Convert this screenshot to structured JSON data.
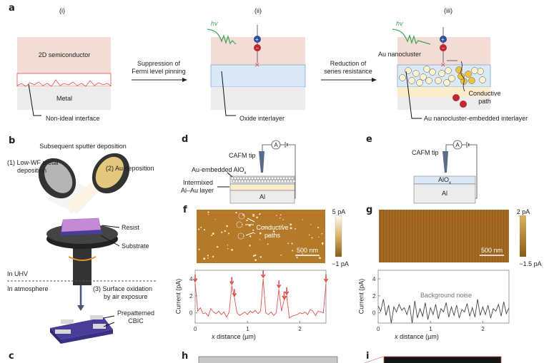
{
  "panel_labels": {
    "a": "a",
    "b": "b",
    "c": "c",
    "d": "d",
    "e": "e",
    "f": "f",
    "g": "g",
    "h": "h",
    "i": "i"
  },
  "panel_a": {
    "sub_i": "(i)",
    "sub_ii": "(ii)",
    "sub_iii": "(iii)",
    "semiconductor": "2D semiconductor",
    "metal": "Metal",
    "non_ideal": "Non-ideal interface",
    "arrow1_line1": "Suppression of",
    "arrow1_line2": "Fermi level pinning",
    "hv": "hv",
    "oxide": "Oxide interlayer",
    "arrow2_line1": "Reduction of",
    "arrow2_line2": "series resistance",
    "nanocluster": "Au nanocluster",
    "conductive_1": "Conductive",
    "conductive_2": "path",
    "embedded": "Au nanocluster-embedded interlayer"
  },
  "panel_b": {
    "title": "Subsequent sputter deposition",
    "step1_line1": "(1) Low-WF metal",
    "step1_line2": "deposition",
    "step2": "(2) Au deposition",
    "resist": "Resist",
    "substrate": "Substrate",
    "uhv": "In UHV",
    "atmosphere": "In atmosphere",
    "step3_line1": "(3) Surface oxidation",
    "step3_line2": "by air exposure",
    "prepatterned_1": "Prepatterned",
    "prepatterned_2": "CBIC"
  },
  "panel_d": {
    "tip": "CAFM tip",
    "ammeter": "A",
    "au_alox": "Au-embedded AlO",
    "sub_x": "x",
    "intermixed_1": "Intermixed",
    "intermixed_2": "Al–Au layer",
    "al": "Al"
  },
  "panel_e": {
    "tip": "CAFM tip",
    "ammeter": "A",
    "alox": "AlO",
    "sub_x": "x",
    "al": "Al"
  },
  "panel_f": {
    "cb_max": "5 pA",
    "cb_min": "−1 pA",
    "scale": "500 nm",
    "conductive_1": "Conductive",
    "conductive_2": "paths"
  },
  "panel_g": {
    "cb_max": "2 pA",
    "cb_min": "−1.5 pA",
    "scale": "500 nm"
  },
  "colors": {
    "pink": "#f3dcd6",
    "blue": "#dbe9f7",
    "yellow": "#fbeccb",
    "gray": "#ececec",
    "red": "#d9534f",
    "green": "#3aa657",
    "afm": "#b47a2a"
  },
  "chart_data": [
    {
      "type": "line",
      "panel": "f",
      "xlabel_italic": "x",
      "xlabel": " distance (µm)",
      "ylabel": "Current (pA)",
      "xlim": [
        0,
        2.5
      ],
      "ylim": [
        -1.2,
        5
      ],
      "xticks": [
        "0",
        "1",
        "2"
      ],
      "yticks": [
        "0",
        "2",
        "4"
      ],
      "color": "#d9534f",
      "arrows_x": [
        0,
        0.7,
        0.75,
        1.3,
        1.6,
        1.7,
        1.75,
        2.5
      ],
      "x_step": 0.05,
      "values": [
        3.5,
        0.2,
        0.6,
        -0.1,
        0.0,
        -0.4,
        0.5,
        0.1,
        -0.1,
        0.2,
        -0.2,
        0.1,
        -0.5,
        0.1,
        3.2,
        1.8,
        0.0,
        -0.3,
        -0.1,
        0.1,
        -0.2,
        0.2,
        0.0,
        0.3,
        -0.1,
        0.2,
        4.0,
        0.0,
        -0.2,
        0.1,
        -0.3,
        0.0,
        2.8,
        0.2,
        1.5,
        2.0,
        -0.6,
        -0.4,
        -0.3,
        -0.2,
        0.0,
        -0.1,
        0.1,
        -0.2,
        0.4,
        0.2,
        -0.3,
        0.2,
        0.1,
        0.0,
        3.5
      ]
    },
    {
      "type": "line",
      "panel": "g",
      "xlabel_italic": "x",
      "xlabel": " distance (µm)",
      "ylabel": "Current (pA)",
      "xlim": [
        0,
        2.5
      ],
      "ylim": [
        -1.2,
        5
      ],
      "xticks": [
        "0",
        "1",
        "2"
      ],
      "yticks": [
        "0",
        "2",
        "4"
      ],
      "color": "#444444",
      "annotation": "Background noise",
      "x_step": 0.05,
      "values": [
        0.8,
        0.2,
        1.6,
        -0.3,
        0.9,
        -1.2,
        0.7,
        0.1,
        1.0,
        0.3,
        0.6,
        -0.2,
        0.9,
        -1.2,
        1.4,
        -0.6,
        0.5,
        -0.4,
        1.2,
        -0.8,
        0.6,
        -0.2,
        1.0,
        -0.7,
        0.5,
        0.1,
        1.2,
        -0.5,
        0.7,
        -0.3,
        0.9,
        -0.6,
        0.4,
        0.1,
        1.1,
        -0.4,
        0.6,
        -0.5,
        1.6,
        -0.3,
        0.7,
        -0.2,
        0.9,
        -0.6,
        0.5,
        0.2,
        1.0,
        -0.4,
        1.3,
        -0.1,
        0.6
      ]
    }
  ]
}
